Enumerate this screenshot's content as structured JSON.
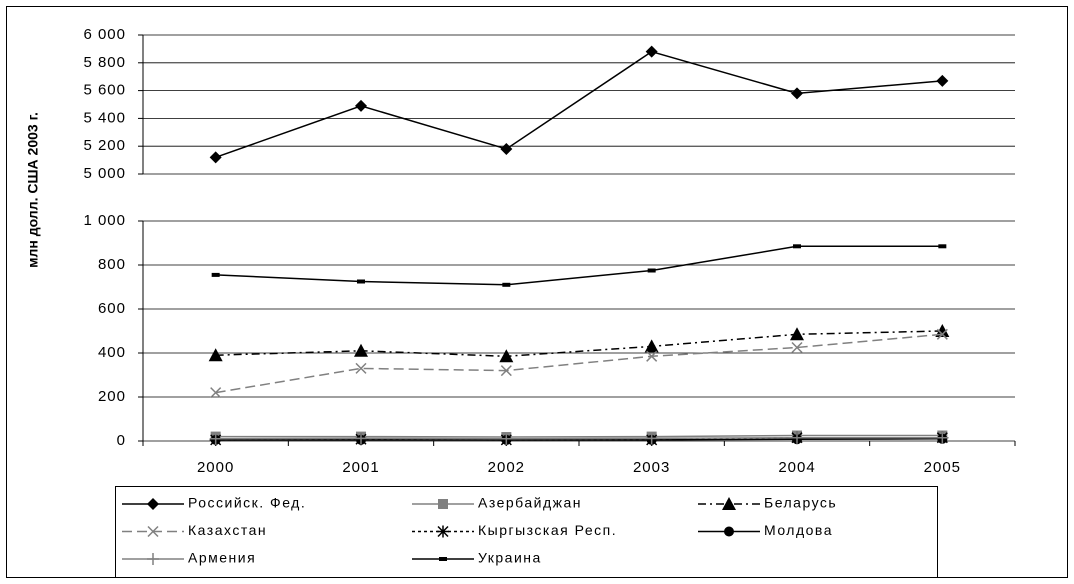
{
  "chart_data": [
    {
      "type": "line",
      "y_label": "млн долл. США 2003 г.",
      "categories": [
        "2000",
        "2001",
        "2002",
        "2003",
        "2004",
        "2005"
      ],
      "ylim": [
        5000,
        6000
      ],
      "yticks": [
        {
          "value": 5000,
          "label": "5 000"
        },
        {
          "value": 5200,
          "label": "5 200"
        },
        {
          "value": 5400,
          "label": "5 400"
        },
        {
          "value": 5600,
          "label": "5 600"
        },
        {
          "value": 5800,
          "label": "5 800"
        },
        {
          "value": 6000,
          "label": "6 000"
        }
      ],
      "grid": true,
      "series": [
        {
          "name": "Российск. Фед.",
          "color": "#000000",
          "marker": "diamond",
          "dash": "solid",
          "values": [
            5120,
            5490,
            5180,
            5880,
            5580,
            5670
          ]
        }
      ]
    },
    {
      "type": "line",
      "categories": [
        "2000",
        "2001",
        "2002",
        "2003",
        "2004",
        "2005"
      ],
      "ylim": [
        0,
        1000
      ],
      "yticks": [
        0,
        200,
        400,
        600,
        800,
        {
          "value": 1000,
          "label": "1 000"
        }
      ],
      "grid": true,
      "series": [
        {
          "name": "Азербайджан",
          "color": "#808080",
          "marker": "square",
          "dash": "solid",
          "values": [
            20,
            20,
            18,
            20,
            25,
            25
          ]
        },
        {
          "name": "Беларусь",
          "color": "#000000",
          "marker": "triangle",
          "dash": "dashdot",
          "values": [
            390,
            410,
            385,
            430,
            485,
            500
          ]
        },
        {
          "name": "Казахстан",
          "color": "#808080",
          "marker": "x",
          "dash": "dash",
          "values": [
            220,
            330,
            320,
            385,
            425,
            485
          ]
        },
        {
          "name": "Кыргызская Респ.",
          "color": "#000000",
          "marker": "star",
          "dash": "dot",
          "values": [
            5,
            8,
            5,
            5,
            15,
            15
          ]
        },
        {
          "name": "Молдова",
          "color": "#000000",
          "marker": "circle",
          "dash": "solid",
          "values": [
            5,
            5,
            5,
            5,
            8,
            10
          ]
        },
        {
          "name": "Армения",
          "color": "#808080",
          "marker": "plus",
          "dash": "solid",
          "values": [
            10,
            12,
            10,
            12,
            15,
            15
          ]
        },
        {
          "name": "Украина",
          "color": "#000000",
          "marker": "bar",
          "dash": "solid",
          "values": [
            755,
            725,
            710,
            775,
            885,
            885
          ]
        }
      ]
    }
  ]
}
